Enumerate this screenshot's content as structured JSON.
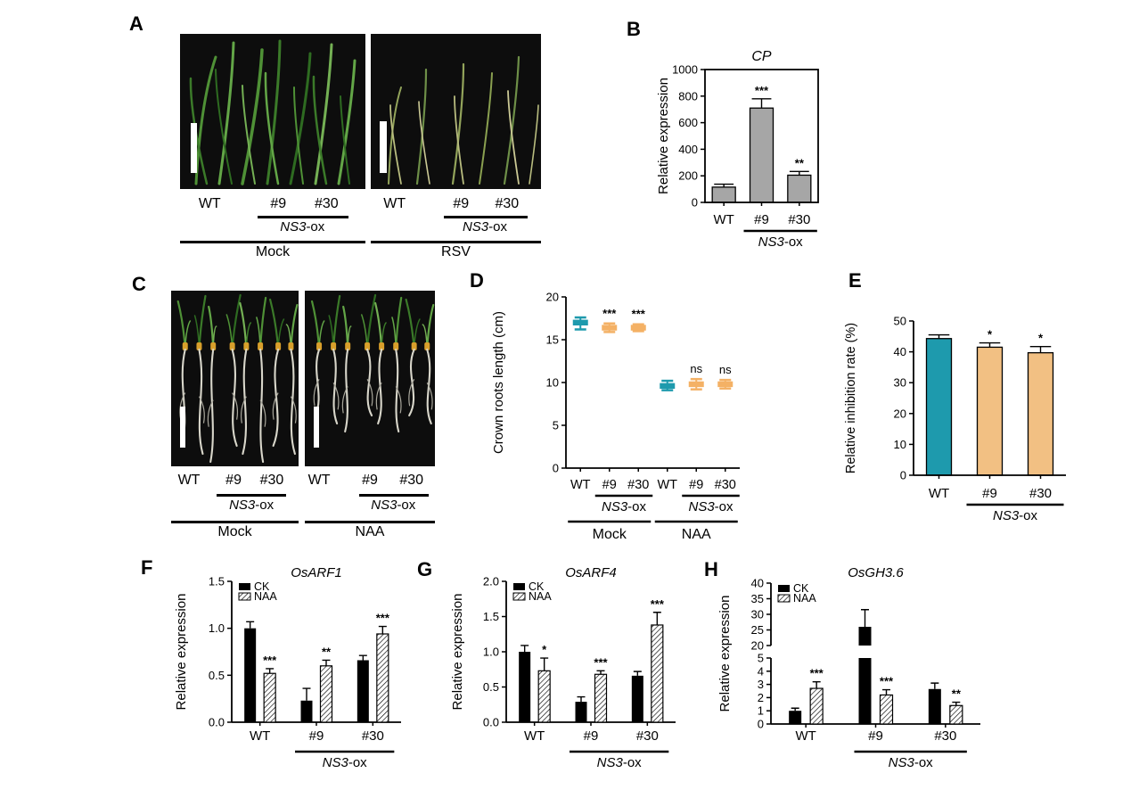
{
  "figure": {
    "background": "#FFFFFF"
  },
  "labels": {
    "wt": "WT",
    "line9": "#9",
    "line30": "#30",
    "ns3": "NS3",
    "ox": "-ox"
  },
  "panels": {
    "a": {
      "letter": "A",
      "left": {
        "treatment": "Mock"
      },
      "right": {
        "treatment": "RSV"
      }
    },
    "b": {
      "letter": "B"
    },
    "c": {
      "letter": "C",
      "left": {
        "treatment": "Mock"
      },
      "right": {
        "treatment": "NAA"
      }
    },
    "d": {
      "letter": "D"
    },
    "e": {
      "letter": "E"
    },
    "f": {
      "letter": "F"
    },
    "g": {
      "letter": "G"
    },
    "h": {
      "letter": "H"
    }
  },
  "colors": {
    "teal": "#1E9AAD",
    "orange_point": "#F4B165",
    "orange_bar": "#F2C083",
    "gray_bar": "#A6A6A6",
    "black": "#000000"
  },
  "chart_data": {
    "b": {
      "type": "bar",
      "title": "CP",
      "ylabel": "Relative expression",
      "ylim": [
        0,
        1000
      ],
      "yticks": [
        0,
        200,
        400,
        600,
        800,
        1000
      ],
      "ytick_labels": [
        "0",
        "200",
        "400",
        "600",
        "800",
        "1000"
      ],
      "categories": [
        "WT",
        "#9",
        "#30"
      ],
      "values": [
        115,
        710,
        205
      ],
      "errors": [
        22,
        70,
        28
      ],
      "sig": [
        "",
        "***",
        "**"
      ],
      "bar_colors": [
        "#A6A6A6",
        "#A6A6A6",
        "#A6A6A6"
      ],
      "frame": true,
      "group": {
        "from": 1,
        "to": 2,
        "italic": "NS3",
        "normal": "-ox"
      }
    },
    "d": {
      "type": "floating_box",
      "ylabel": "Crown roots length (cm)",
      "ylim": [
        0,
        20
      ],
      "yticks": [
        0,
        5,
        10,
        15,
        20
      ],
      "ytick_labels": [
        "0",
        "5",
        "10",
        "15",
        "20"
      ],
      "categories": [
        "WT",
        "#9",
        "#30",
        "WT",
        "#9",
        "#30"
      ],
      "mean": [
        17.0,
        16.4,
        16.4,
        9.6,
        9.8,
        9.8
      ],
      "high": [
        17.6,
        16.9,
        16.8,
        10.2,
        10.4,
        10.3
      ],
      "low": [
        16.2,
        15.9,
        16.0,
        9.1,
        9.2,
        9.3
      ],
      "point_colors": [
        "#1E9AAD",
        "#F4B165",
        "#F4B165",
        "#1E9AAD",
        "#F4B165",
        "#F4B165"
      ],
      "sig": [
        "",
        "***",
        "***",
        "",
        "ns",
        "ns"
      ],
      "groups": [
        {
          "from": 1,
          "to": 2,
          "italic": "NS3",
          "normal": "-ox"
        },
        {
          "from": 4,
          "to": 5,
          "italic": "NS3",
          "normal": "-ox"
        }
      ],
      "supergroups": [
        {
          "label": "Mock",
          "from": 0,
          "to": 2
        },
        {
          "label": "NAA",
          "from": 3,
          "to": 5
        }
      ]
    },
    "e": {
      "type": "bar",
      "title": "",
      "ylabel": "Relative inhibition rate (%)",
      "ylim": [
        0,
        50
      ],
      "yticks": [
        0,
        10,
        20,
        30,
        40,
        50
      ],
      "ytick_labels": [
        "0",
        "10",
        "20",
        "30",
        "40",
        "50"
      ],
      "categories": [
        "WT",
        "#9",
        "#30"
      ],
      "values": [
        44.3,
        41.5,
        39.7
      ],
      "errors": [
        1.2,
        1.4,
        2.0
      ],
      "sig": [
        "",
        "*",
        "*"
      ],
      "bar_colors": [
        "#1E9AAD",
        "#F2C083",
        "#F2C083"
      ],
      "frame": false,
      "group": {
        "from": 1,
        "to": 2,
        "italic": "NS3",
        "normal": "-ox"
      }
    },
    "f": {
      "type": "grouped_bar",
      "title": "OsARF1",
      "ylabel": "Relative expression",
      "ylim": [
        0,
        1.5
      ],
      "yticks": [
        0,
        0.5,
        1.0,
        1.5
      ],
      "ytick_labels": [
        "0.0",
        "0.5",
        "1.0",
        "1.5"
      ],
      "categories": [
        "WT",
        "#9",
        "#30"
      ],
      "series": [
        {
          "name": "CK",
          "color": "#000000",
          "values": [
            1.0,
            0.23,
            0.66
          ],
          "errors": [
            0.07,
            0.13,
            0.05
          ]
        },
        {
          "name": "NAA",
          "hatch": true,
          "values": [
            0.52,
            0.6,
            0.94
          ],
          "errors": [
            0.05,
            0.06,
            0.08
          ]
        }
      ],
      "sig_series2": [
        "***",
        "**",
        "***"
      ],
      "group": {
        "from": 1,
        "to": 2,
        "italic": "NS3",
        "normal": "-ox"
      }
    },
    "g": {
      "type": "grouped_bar",
      "title": "OsARF4",
      "ylabel": "Relative expression",
      "ylim": [
        0,
        2.0
      ],
      "yticks": [
        0,
        0.5,
        1.0,
        1.5,
        2.0
      ],
      "ytick_labels": [
        "0.0",
        "0.5",
        "1.0",
        "1.5",
        "2.0"
      ],
      "categories": [
        "WT",
        "#9",
        "#30"
      ],
      "series": [
        {
          "name": "CK",
          "color": "#000000",
          "values": [
            1.0,
            0.29,
            0.66
          ],
          "errors": [
            0.09,
            0.07,
            0.06
          ]
        },
        {
          "name": "NAA",
          "hatch": true,
          "values": [
            0.73,
            0.68,
            1.38
          ],
          "errors": [
            0.18,
            0.05,
            0.18
          ]
        }
      ],
      "sig_series2": [
        "*",
        "***",
        "***"
      ],
      "group": {
        "from": 1,
        "to": 2,
        "italic": "NS3",
        "normal": "-ox"
      }
    },
    "h": {
      "type": "grouped_bar_broken",
      "title": "OsGH3.6",
      "ylabel": "Relative expression",
      "axis_lower": {
        "lim": [
          0,
          5
        ],
        "ticks": [
          0,
          1,
          2,
          3,
          4,
          5
        ],
        "tick_labels": [
          "0",
          "1",
          "2",
          "3",
          "4",
          "5"
        ]
      },
      "axis_upper": {
        "lim": [
          20,
          40
        ],
        "ticks": [
          20,
          25,
          30,
          35,
          40
        ],
        "tick_labels": [
          "20",
          "25",
          "30",
          "35",
          "40"
        ]
      },
      "categories": [
        "WT",
        "#9",
        "#30"
      ],
      "series": [
        {
          "name": "CK",
          "color": "#000000",
          "values": [
            1.0,
            26.0,
            2.65
          ],
          "errors": [
            0.2,
            5.5,
            0.45
          ]
        },
        {
          "name": "NAA",
          "hatch": true,
          "values": [
            2.7,
            2.2,
            1.4
          ],
          "errors": [
            0.5,
            0.4,
            0.25
          ]
        }
      ],
      "sig_series2": [
        "***",
        "***",
        "**"
      ],
      "group": {
        "from": 1,
        "to": 2,
        "italic": "NS3",
        "normal": "-ox"
      }
    }
  }
}
